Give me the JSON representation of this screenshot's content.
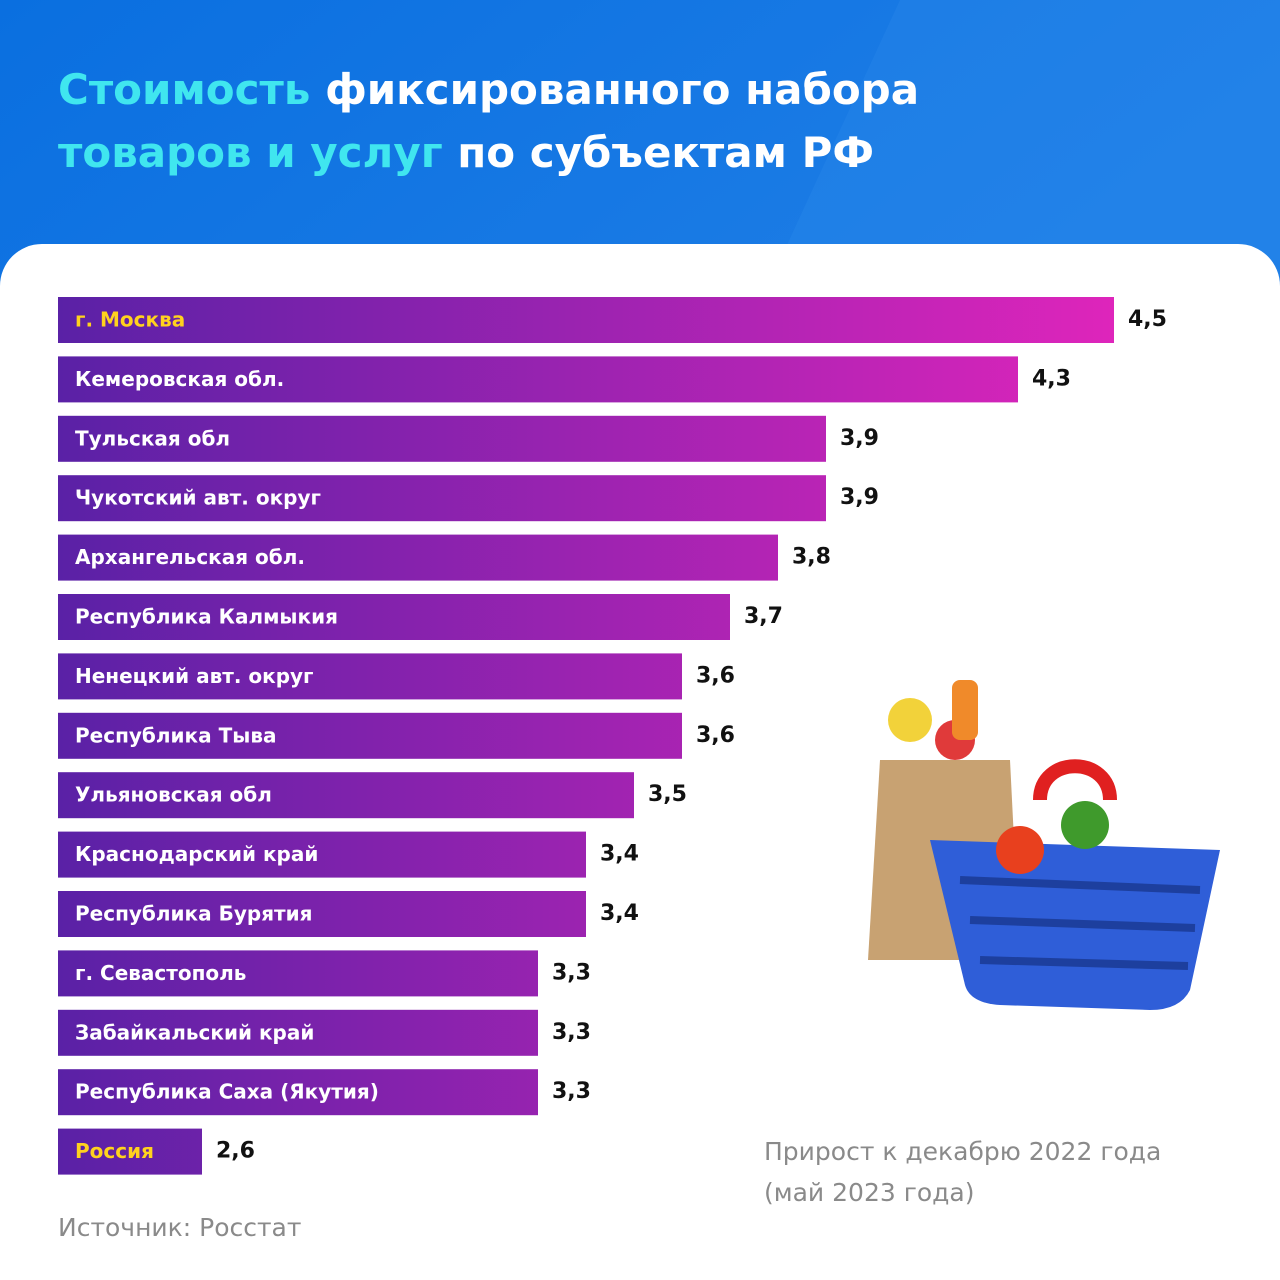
{
  "chart_data": {
    "type": "bar",
    "orientation": "horizontal",
    "title": [
      "Стоимость",
      "фиксированного набора",
      "товаров и услуг",
      "по субъектам РФ"
    ],
    "title_colors": [
      "#40e6ef",
      "#ffffff",
      "#40e6ef",
      "#ffffff"
    ],
    "categories": [
      "г. Москва",
      "Кемеровская обл.",
      "Тульская обл",
      "Чукотский авт. округ",
      "Архангельская обл.",
      "Республика Калмыкия",
      "Ненецкий авт. округ",
      "Республика Тыва",
      "Ульяновская обл",
      "Краснодарский край",
      "Республика Бурятия",
      "г. Севастополь",
      "Забайкальский край",
      "Республика Саха (Якутия)",
      "Россия"
    ],
    "label_colors": [
      "#ffd21e",
      "#ffffff",
      "#ffffff",
      "#ffffff",
      "#ffffff",
      "#ffffff",
      "#ffffff",
      "#ffffff",
      "#ffffff",
      "#ffffff",
      "#ffffff",
      "#ffffff",
      "#ffffff",
      "#ffffff",
      "#ffd21e"
    ],
    "values": [
      4.5,
      4.3,
      3.9,
      3.9,
      3.8,
      3.7,
      3.6,
      3.6,
      3.5,
      3.4,
      3.4,
      3.3,
      3.3,
      3.3,
      2.6
    ],
    "value_labels": [
      "4,5",
      "4,3",
      "3,9",
      "3,9",
      "3,8",
      "3,7",
      "3,6",
      "3,6",
      "3,5",
      "3,4",
      "3,4",
      "3,3",
      "3,3",
      "3,3",
      "2,6"
    ],
    "gradient": [
      "#5a21a6",
      "#de25bb"
    ],
    "xlim": [
      2.3,
      4.5
    ],
    "note": [
      "Прирост к декабрю 2022 года",
      "(май 2023 года)"
    ],
    "source": "Источник: Росстат"
  }
}
